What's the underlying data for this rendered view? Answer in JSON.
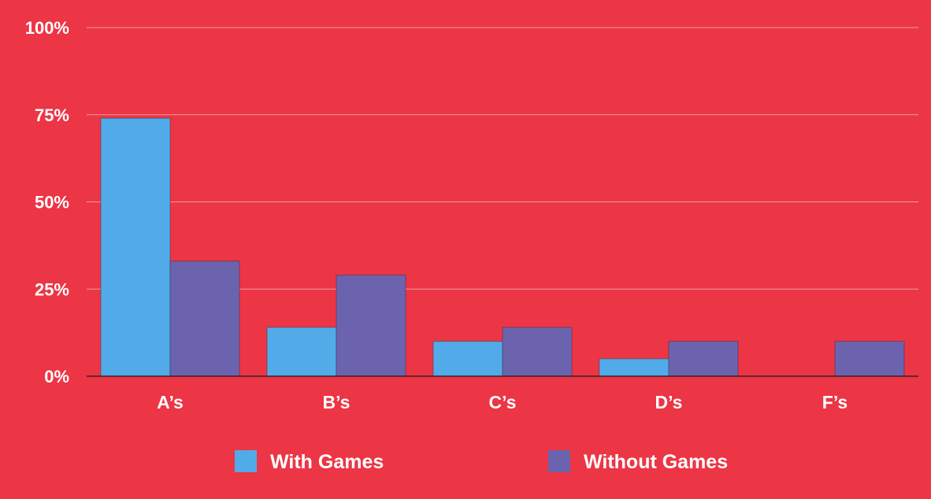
{
  "colors": {
    "background": "#EC3545",
    "with_games": "#51ABE8",
    "without_games": "#6B63AE",
    "gridline": "#F29AA1",
    "axis": "#3A1F24",
    "text": "#FFFFFF"
  },
  "chart_data": {
    "type": "bar",
    "title": "",
    "xlabel": "",
    "ylabel": "",
    "categories": [
      "A’s",
      "B’s",
      "C’s",
      "D’s",
      "F’s"
    ],
    "series": [
      {
        "name": "With Games",
        "values": [
          74,
          14,
          10,
          5,
          0
        ]
      },
      {
        "name": "Without Games",
        "values": [
          33,
          29,
          14,
          10,
          10
        ]
      }
    ],
    "yticks": [
      {
        "value": 100,
        "label": "100%"
      },
      {
        "value": 75,
        "label": "75%"
      },
      {
        "value": 50,
        "label": "50%"
      },
      {
        "value": 25,
        "label": "25%"
      },
      {
        "value": 0,
        "label": "0%"
      }
    ],
    "ylim": [
      0,
      100
    ],
    "grid": true,
    "legend": "bottom-center"
  }
}
